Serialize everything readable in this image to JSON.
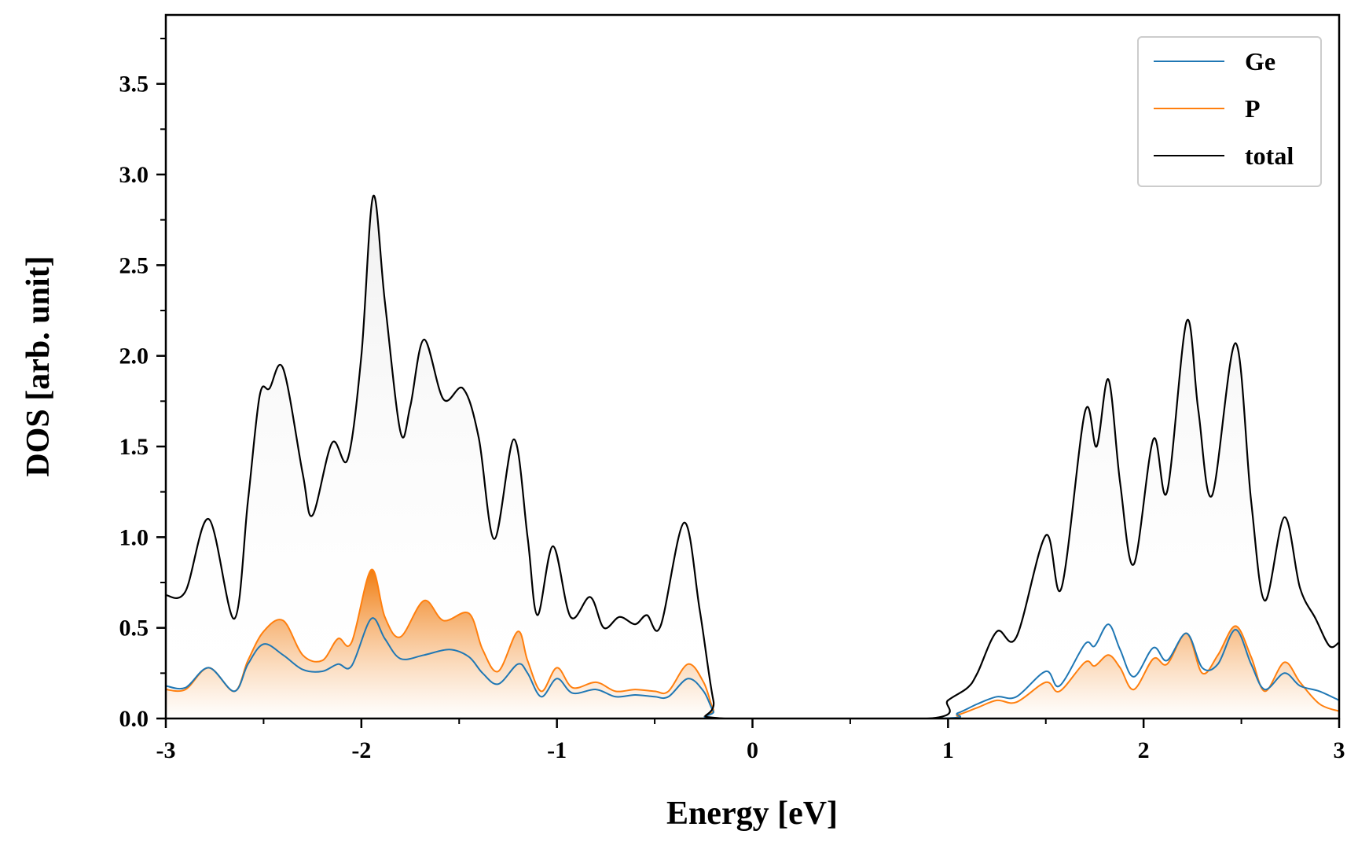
{
  "chart_data": {
    "type": "line",
    "title": "",
    "xlabel": "Energy [eV]",
    "ylabel": "DOS [arb. unit]",
    "xlim": [
      -3,
      3
    ],
    "ylim": [
      0,
      3.88
    ],
    "x_ticks": [
      -3,
      -2,
      -1,
      0,
      1,
      2,
      3
    ],
    "x_tick_labels": [
      "-3",
      "-2",
      "-1",
      "0",
      "1",
      "2",
      "3"
    ],
    "y_ticks": [
      0,
      0.5,
      1,
      1.5,
      2,
      2.5,
      3,
      3.5
    ],
    "y_tick_labels": [
      "0.0",
      "0.5",
      "1.0",
      "1.5",
      "2.0",
      "2.5",
      "3.0",
      "3.5"
    ],
    "legend_position": "top-right",
    "series": [
      {
        "name": "Ge",
        "color": "#1f77b4",
        "points": [
          [
            -3.0,
            0.18
          ],
          [
            -2.9,
            0.17
          ],
          [
            -2.78,
            0.28
          ],
          [
            -2.65,
            0.15
          ],
          [
            -2.58,
            0.3
          ],
          [
            -2.5,
            0.41
          ],
          [
            -2.4,
            0.35
          ],
          [
            -2.3,
            0.27
          ],
          [
            -2.2,
            0.26
          ],
          [
            -2.12,
            0.3
          ],
          [
            -2.05,
            0.29
          ],
          [
            -1.95,
            0.55
          ],
          [
            -1.88,
            0.44
          ],
          [
            -1.8,
            0.33
          ],
          [
            -1.68,
            0.35
          ],
          [
            -1.55,
            0.38
          ],
          [
            -1.45,
            0.34
          ],
          [
            -1.38,
            0.25
          ],
          [
            -1.3,
            0.19
          ],
          [
            -1.2,
            0.3
          ],
          [
            -1.15,
            0.25
          ],
          [
            -1.08,
            0.12
          ],
          [
            -1.0,
            0.22
          ],
          [
            -0.92,
            0.14
          ],
          [
            -0.8,
            0.16
          ],
          [
            -0.7,
            0.12
          ],
          [
            -0.6,
            0.13
          ],
          [
            -0.5,
            0.12
          ],
          [
            -0.43,
            0.12
          ],
          [
            -0.33,
            0.22
          ],
          [
            -0.25,
            0.15
          ],
          [
            -0.2,
            0.04
          ],
          [
            -0.15,
            0.0
          ],
          [
            0.95,
            0.0
          ],
          [
            1.05,
            0.03
          ],
          [
            1.15,
            0.08
          ],
          [
            1.25,
            0.12
          ],
          [
            1.35,
            0.12
          ],
          [
            1.5,
            0.26
          ],
          [
            1.57,
            0.18
          ],
          [
            1.7,
            0.41
          ],
          [
            1.75,
            0.4
          ],
          [
            1.82,
            0.52
          ],
          [
            1.88,
            0.38
          ],
          [
            1.95,
            0.23
          ],
          [
            2.05,
            0.39
          ],
          [
            2.12,
            0.32
          ],
          [
            2.22,
            0.47
          ],
          [
            2.3,
            0.28
          ],
          [
            2.38,
            0.3
          ],
          [
            2.47,
            0.49
          ],
          [
            2.55,
            0.3
          ],
          [
            2.62,
            0.16
          ],
          [
            2.72,
            0.25
          ],
          [
            2.8,
            0.18
          ],
          [
            2.9,
            0.15
          ],
          [
            3.0,
            0.1
          ]
        ]
      },
      {
        "name": "P",
        "color": "#ff7f0e",
        "points": [
          [
            -3.0,
            0.16
          ],
          [
            -2.9,
            0.16
          ],
          [
            -2.78,
            0.28
          ],
          [
            -2.65,
            0.15
          ],
          [
            -2.58,
            0.32
          ],
          [
            -2.5,
            0.48
          ],
          [
            -2.4,
            0.54
          ],
          [
            -2.3,
            0.35
          ],
          [
            -2.2,
            0.32
          ],
          [
            -2.12,
            0.44
          ],
          [
            -2.05,
            0.42
          ],
          [
            -1.95,
            0.82
          ],
          [
            -1.88,
            0.56
          ],
          [
            -1.8,
            0.45
          ],
          [
            -1.68,
            0.65
          ],
          [
            -1.58,
            0.54
          ],
          [
            -1.45,
            0.58
          ],
          [
            -1.38,
            0.38
          ],
          [
            -1.3,
            0.26
          ],
          [
            -1.2,
            0.48
          ],
          [
            -1.15,
            0.32
          ],
          [
            -1.08,
            0.15
          ],
          [
            -1.0,
            0.28
          ],
          [
            -0.92,
            0.17
          ],
          [
            -0.8,
            0.2
          ],
          [
            -0.7,
            0.15
          ],
          [
            -0.6,
            0.16
          ],
          [
            -0.5,
            0.15
          ],
          [
            -0.43,
            0.15
          ],
          [
            -0.33,
            0.3
          ],
          [
            -0.25,
            0.2
          ],
          [
            -0.2,
            0.05
          ],
          [
            -0.15,
            0.0
          ],
          [
            0.95,
            0.0
          ],
          [
            1.05,
            0.02
          ],
          [
            1.15,
            0.06
          ],
          [
            1.25,
            0.1
          ],
          [
            1.35,
            0.09
          ],
          [
            1.5,
            0.2
          ],
          [
            1.57,
            0.15
          ],
          [
            1.7,
            0.31
          ],
          [
            1.75,
            0.29
          ],
          [
            1.82,
            0.35
          ],
          [
            1.88,
            0.28
          ],
          [
            1.95,
            0.16
          ],
          [
            2.05,
            0.33
          ],
          [
            2.12,
            0.3
          ],
          [
            2.22,
            0.47
          ],
          [
            2.3,
            0.25
          ],
          [
            2.38,
            0.35
          ],
          [
            2.47,
            0.51
          ],
          [
            2.55,
            0.34
          ],
          [
            2.62,
            0.15
          ],
          [
            2.72,
            0.31
          ],
          [
            2.8,
            0.2
          ],
          [
            2.9,
            0.08
          ],
          [
            3.0,
            0.04
          ]
        ]
      },
      {
        "name": "total",
        "color": "#000000",
        "points": [
          [
            -3.0,
            0.68
          ],
          [
            -2.9,
            0.7
          ],
          [
            -2.78,
            1.1
          ],
          [
            -2.65,
            0.55
          ],
          [
            -2.58,
            1.2
          ],
          [
            -2.52,
            1.78
          ],
          [
            -2.47,
            1.82
          ],
          [
            -2.4,
            1.93
          ],
          [
            -2.3,
            1.35
          ],
          [
            -2.25,
            1.12
          ],
          [
            -2.15,
            1.52
          ],
          [
            -2.07,
            1.43
          ],
          [
            -2.0,
            2.0
          ],
          [
            -1.94,
            2.88
          ],
          [
            -1.88,
            2.3
          ],
          [
            -1.8,
            1.58
          ],
          [
            -1.75,
            1.72
          ],
          [
            -1.68,
            2.09
          ],
          [
            -1.58,
            1.76
          ],
          [
            -1.48,
            1.82
          ],
          [
            -1.4,
            1.55
          ],
          [
            -1.32,
            0.99
          ],
          [
            -1.22,
            1.54
          ],
          [
            -1.15,
            1.0
          ],
          [
            -1.1,
            0.57
          ],
          [
            -1.02,
            0.95
          ],
          [
            -0.93,
            0.56
          ],
          [
            -0.83,
            0.67
          ],
          [
            -0.76,
            0.5
          ],
          [
            -0.68,
            0.56
          ],
          [
            -0.6,
            0.52
          ],
          [
            -0.54,
            0.57
          ],
          [
            -0.47,
            0.51
          ],
          [
            -0.35,
            1.08
          ],
          [
            -0.27,
            0.6
          ],
          [
            -0.2,
            0.1
          ],
          [
            -0.15,
            0.0
          ],
          [
            0.9,
            0.0
          ],
          [
            1.0,
            0.1
          ],
          [
            1.1,
            0.17
          ],
          [
            1.15,
            0.25
          ],
          [
            1.25,
            0.48
          ],
          [
            1.35,
            0.45
          ],
          [
            1.5,
            1.01
          ],
          [
            1.58,
            0.72
          ],
          [
            1.7,
            1.69
          ],
          [
            1.76,
            1.5
          ],
          [
            1.82,
            1.87
          ],
          [
            1.88,
            1.3
          ],
          [
            1.95,
            0.85
          ],
          [
            2.05,
            1.54
          ],
          [
            2.12,
            1.25
          ],
          [
            2.22,
            2.19
          ],
          [
            2.28,
            1.7
          ],
          [
            2.35,
            1.23
          ],
          [
            2.47,
            2.07
          ],
          [
            2.55,
            1.2
          ],
          [
            2.62,
            0.65
          ],
          [
            2.72,
            1.11
          ],
          [
            2.8,
            0.72
          ],
          [
            2.88,
            0.55
          ],
          [
            2.95,
            0.4
          ],
          [
            3.0,
            0.42
          ]
        ]
      }
    ]
  }
}
